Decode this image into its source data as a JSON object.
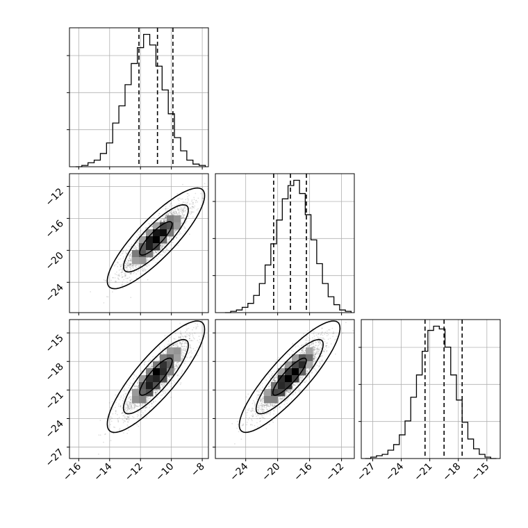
{
  "chart_data": {
    "type": "corner",
    "parameters": [
      {
        "quantiles": [
          -12.1,
          -10.9,
          -9.9
        ],
        "ticks": [
          -16,
          -14,
          -12,
          -10,
          -8
        ],
        "tick_labels": [
          "−16",
          "−14",
          "−12",
          "−10",
          "−8"
        ],
        "range": [
          -16.6,
          -7.6
        ],
        "hist_range": [
          -16.2,
          -7.8
        ],
        "hist_counts": [
          0,
          0.01,
          0.03,
          0.05,
          0.1,
          0.18,
          0.33,
          0.46,
          0.62,
          0.78,
          0.9,
          1.0,
          0.92,
          0.76,
          0.58,
          0.4,
          0.22,
          0.12,
          0.05,
          0.02,
          0.01
        ]
      },
      {
        "quantiles": [
          -20.5,
          -18.4,
          -16.4
        ],
        "ticks": [
          -24,
          -20,
          -16,
          -12
        ],
        "tick_labels": [
          "−24",
          "−20",
          "−16",
          "−12"
        ],
        "range": [
          -27.8,
          -10.4
        ],
        "hist_range": [
          -26.6,
          -10.8
        ],
        "hist_counts": [
          0,
          0.01,
          0.02,
          0.04,
          0.07,
          0.13,
          0.22,
          0.36,
          0.52,
          0.7,
          0.86,
          0.96,
          1.0,
          0.9,
          0.74,
          0.55,
          0.37,
          0.22,
          0.12,
          0.06,
          0.02,
          0.01
        ]
      },
      {
        "quantiles": [
          -21.5,
          -19.5,
          -17.6
        ],
        "ticks": [
          -27,
          -24,
          -21,
          -18,
          -15
        ],
        "tick_labels": [
          "−27",
          "−24",
          "−21",
          "−18",
          "−15"
        ],
        "range": [
          -28.2,
          -13.6
        ],
        "hist_range": [
          -27.8,
          -14.0
        ],
        "hist_counts": [
          0,
          0.01,
          0.02,
          0.03,
          0.06,
          0.1,
          0.17,
          0.27,
          0.44,
          0.6,
          0.77,
          0.92,
          0.95,
          0.93,
          0.8,
          0.6,
          0.42,
          0.26,
          0.14,
          0.07,
          0.03,
          0.01,
          0
        ]
      }
    ],
    "y_axis_ticks": {
      "row1": [
        -12,
        -16,
        -20,
        -24
      ],
      "row2": [
        -15,
        -18,
        -21,
        -24,
        -27
      ]
    },
    "grid": true,
    "contour_levels": [
      0.393,
      0.865,
      0.989
    ],
    "pairs": [
      {
        "x": 0,
        "y": 1,
        "mean": [
          -11.0,
          -18.5
        ],
        "sd": [
          1.05,
          2.1
        ],
        "rho": 0.85
      },
      {
        "x": 0,
        "y": 2,
        "mean": [
          -11.0,
          -19.6
        ],
        "sd": [
          1.05,
          1.95
        ],
        "rho": 0.85
      },
      {
        "x": 1,
        "y": 2,
        "mean": [
          -18.5,
          -19.6
        ],
        "sd": [
          2.1,
          1.95
        ],
        "rho": 0.87
      }
    ],
    "points_per_panel": 2600,
    "density_bins": 20
  }
}
